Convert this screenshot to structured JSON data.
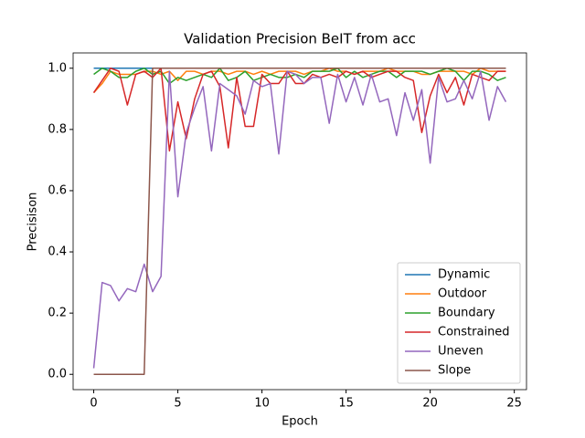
{
  "chart_data": {
    "type": "line",
    "title": "Validation Precision BeIT from acc",
    "x_label": "Epoch",
    "y_label": "Precisison",
    "x": [
      0,
      0.5,
      1,
      1.5,
      2,
      2.5,
      3,
      3.5,
      4,
      4.5,
      5,
      5.5,
      6,
      6.5,
      7,
      7.5,
      8,
      8.5,
      9,
      9.5,
      10,
      10.5,
      11,
      11.5,
      12,
      12.5,
      13,
      13.5,
      14,
      14.5,
      15,
      15.5,
      16,
      16.5,
      17,
      17.5,
      18,
      18.5,
      19,
      19.5,
      20,
      20.5,
      21,
      21.5,
      22,
      22.5,
      23,
      23.5,
      24,
      24.5
    ],
    "xlim": [
      -1.225,
      25.725
    ],
    "xticks": [
      0,
      5,
      10,
      15,
      20,
      25
    ],
    "ylim": [
      -0.05,
      1.05
    ],
    "yticks": [
      {
        "value": 0,
        "label": "0.0"
      },
      {
        "value": 0.2,
        "label": "0.2"
      },
      {
        "value": 0.4,
        "label": "0.4"
      },
      {
        "value": 0.6,
        "label": "0.6"
      },
      {
        "value": 0.8,
        "label": "0.8"
      },
      {
        "value": 1,
        "label": "1.0"
      }
    ],
    "legend": "lower right",
    "series": [
      {
        "name": "Dynamic",
        "color": "#1f77b4",
        "values": [
          1,
          1,
          1,
          1,
          1,
          1,
          1,
          1,
          1,
          1,
          1,
          1,
          1,
          1,
          1,
          1,
          1,
          1,
          1,
          1,
          1,
          1,
          1,
          1,
          1,
          1,
          1,
          1,
          1,
          1,
          1,
          1,
          1,
          1,
          1,
          1,
          1,
          1,
          1,
          1,
          1,
          1,
          1,
          1,
          1,
          1,
          1,
          1,
          1,
          1
        ]
      },
      {
        "name": "Outdoor",
        "color": "#ff7f0e",
        "values": [
          0.92,
          0.95,
          0.99,
          0.98,
          0.98,
          0.98,
          0.99,
          0.99,
          0.98,
          0.99,
          0.96,
          0.99,
          0.99,
          0.98,
          0.99,
          0.99,
          0.98,
          0.99,
          0.99,
          0.98,
          0.99,
          0.98,
          0.99,
          0.99,
          0.99,
          0.98,
          0.99,
          0.99,
          1.0,
          0.99,
          0.99,
          0.98,
          0.99,
          0.99,
          0.99,
          1.0,
          0.99,
          0.99,
          0.99,
          0.98,
          0.98,
          0.99,
          0.99,
          0.99,
          0.99,
          0.98,
          1.0,
          0.99,
          0.99,
          0.99
        ]
      },
      {
        "name": "Boundary",
        "color": "#2ca02c",
        "values": [
          0.98,
          1.0,
          0.99,
          0.97,
          0.97,
          0.99,
          1.0,
          0.98,
          0.99,
          0.95,
          0.97,
          0.96,
          0.97,
          0.98,
          0.97,
          1.0,
          0.96,
          0.97,
          0.99,
          0.96,
          0.97,
          0.98,
          0.97,
          0.97,
          0.98,
          0.97,
          0.99,
          0.99,
          0.99,
          1.0,
          0.97,
          0.99,
          0.97,
          0.98,
          0.99,
          0.99,
          0.97,
          0.99,
          0.99,
          0.99,
          0.98,
          0.99,
          1.0,
          0.99,
          0.96,
          0.99,
          0.99,
          0.98,
          0.96,
          0.97
        ]
      },
      {
        "name": "Constrained",
        "color": "#d62728",
        "values": [
          0.92,
          0.96,
          1.0,
          0.99,
          0.88,
          0.98,
          0.99,
          0.97,
          1.0,
          0.73,
          0.89,
          0.77,
          0.9,
          0.98,
          0.99,
          0.94,
          0.74,
          0.97,
          0.81,
          0.81,
          0.98,
          0.95,
          0.95,
          0.99,
          0.95,
          0.95,
          0.98,
          0.97,
          0.98,
          0.97,
          0.99,
          0.98,
          0.99,
          0.97,
          0.98,
          0.99,
          0.99,
          0.97,
          0.96,
          0.79,
          0.91,
          0.98,
          0.92,
          0.97,
          0.88,
          0.98,
          0.97,
          0.96,
          0.99,
          0.99
        ]
      },
      {
        "name": "Uneven",
        "color": "#9467bd",
        "values": [
          0.02,
          0.3,
          0.29,
          0.24,
          0.28,
          0.27,
          0.36,
          0.27,
          0.32,
          0.99,
          0.58,
          0.79,
          0.87,
          0.94,
          0.73,
          0.95,
          0.93,
          0.91,
          0.85,
          0.96,
          0.94,
          0.95,
          0.72,
          0.99,
          0.98,
          0.95,
          0.97,
          0.97,
          0.82,
          0.98,
          0.89,
          0.97,
          0.88,
          0.98,
          0.89,
          0.9,
          0.78,
          0.92,
          0.83,
          0.93,
          0.69,
          0.97,
          0.89,
          0.9,
          0.96,
          0.9,
          0.99,
          0.83,
          0.94,
          0.89
        ]
      },
      {
        "name": "Slope",
        "color": "#8c564b",
        "values": [
          0,
          0,
          0,
          0,
          0,
          0,
          0,
          1,
          1,
          1,
          1,
          1,
          1,
          1,
          1,
          1,
          1,
          1,
          1,
          1,
          1,
          1,
          1,
          1,
          1,
          1,
          1,
          1,
          1,
          1,
          1,
          1,
          1,
          1,
          1,
          1,
          1,
          1,
          1,
          1,
          1,
          1,
          1,
          1,
          1,
          1,
          1,
          1,
          1,
          1
        ]
      }
    ]
  }
}
